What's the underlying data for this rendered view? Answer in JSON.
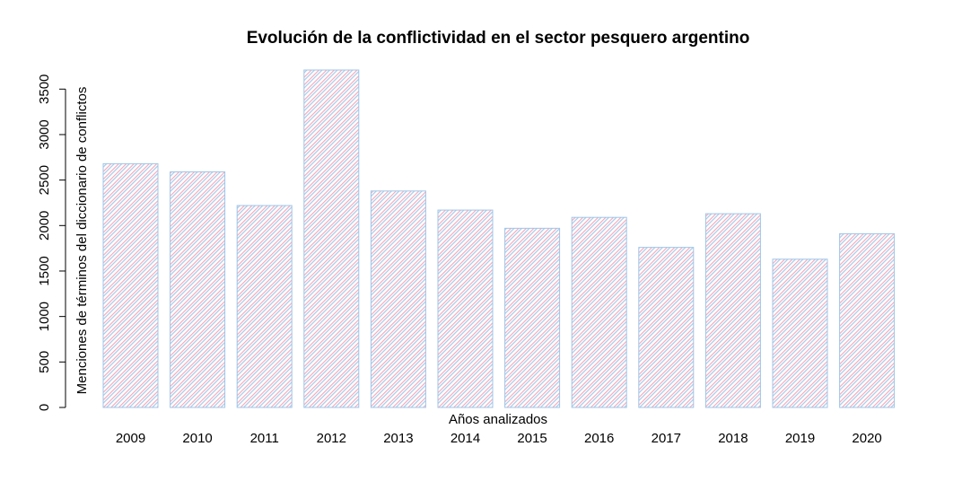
{
  "chart_data": {
    "type": "bar",
    "title": "Evolución de la conflictividad en el sector pesquero argentino",
    "xlabel": "Años analizados",
    "ylabel": "Menciones de términos del diccionario de conflictos",
    "categories": [
      "2009",
      "2010",
      "2011",
      "2012",
      "2013",
      "2014",
      "2015",
      "2016",
      "2017",
      "2018",
      "2019",
      "2020"
    ],
    "values": [
      2680,
      2590,
      2220,
      3710,
      2380,
      2170,
      1970,
      2090,
      1760,
      2130,
      1630,
      1910
    ],
    "y_ticks": [
      "0",
      "500",
      "1000",
      "1500",
      "2000",
      "2500",
      "3000",
      "3500"
    ],
    "ylim": [
      0,
      3710
    ],
    "grid": false,
    "legend": "none",
    "colors": {
      "bar_border": "#9fc5e8",
      "bar_hatch_pink": "#f4a6b8",
      "bar_hatch_blue": "#a9c8e8",
      "axis": "#000000"
    }
  }
}
